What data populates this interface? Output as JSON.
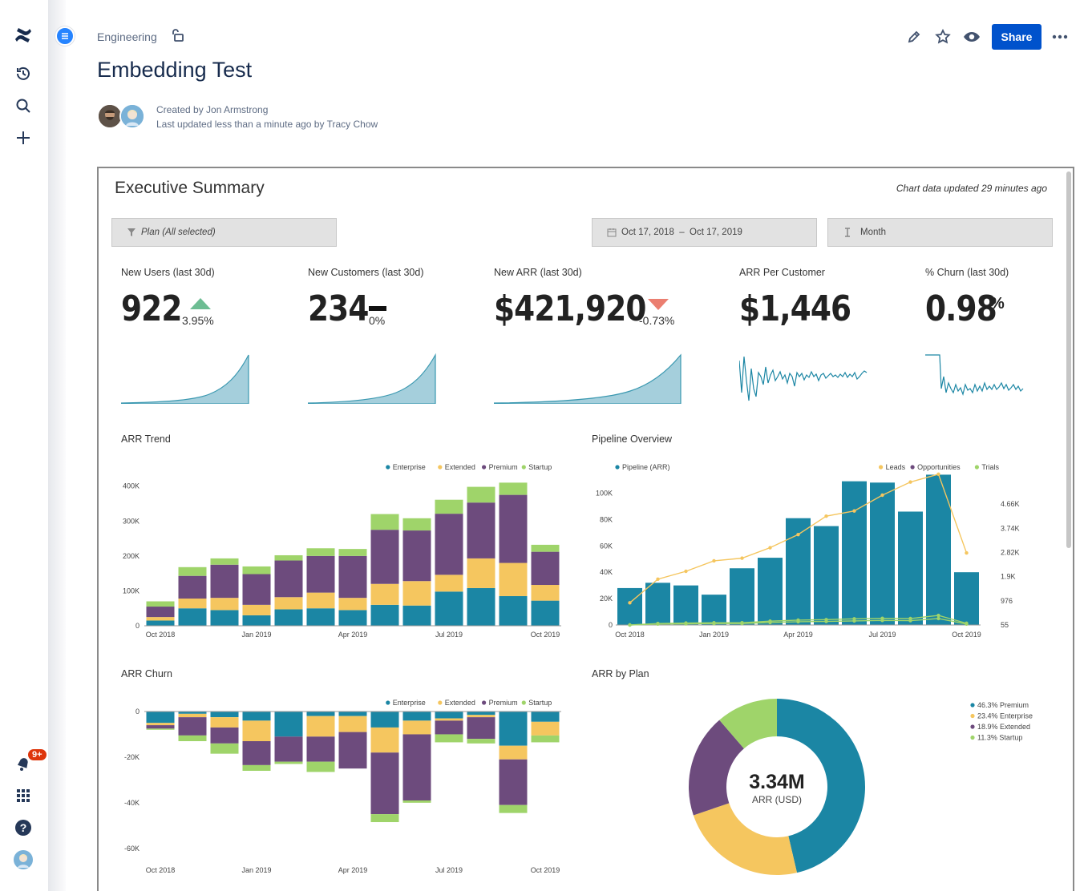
{
  "breadcrumb": "Engineering",
  "page_title": "Embedding Test",
  "byline": {
    "created": "Created by Jon Armstrong",
    "updated": "Last updated less than a minute ago by Tracy Chow"
  },
  "toolbar": {
    "share_label": "Share"
  },
  "notifications": {
    "badge": "9+"
  },
  "colors": {
    "enterprise": "#1b86a4",
    "extended": "#f5c65f",
    "premium": "#6d4b7d",
    "startup": "#9fd46a",
    "brand": "#0052cc"
  },
  "dashboard": {
    "title": "Executive Summary",
    "updated": "Chart data updated 29 minutes ago",
    "filters": {
      "plan": "Plan (All selected)",
      "date_range": "Oct 17, 2018  –  Oct 17, 2019",
      "granularity": "Month"
    },
    "kpis": [
      {
        "label": "New Users (last 30d)",
        "value": "922",
        "change": "3.95%",
        "trend": "up"
      },
      {
        "label": "New Customers (last 30d)",
        "value": "234",
        "change": "0%",
        "trend": "flat"
      },
      {
        "label": "New ARR (last 30d)",
        "value": "$421,920",
        "change": "-0.73%",
        "trend": "down"
      },
      {
        "label": "ARR Per Customer",
        "value": "$1,446"
      },
      {
        "label": "% Churn (last 30d)",
        "value": "0.98",
        "unit": "%"
      }
    ]
  },
  "chart_data": [
    {
      "type": "bar",
      "stacked": true,
      "title": "ARR Trend",
      "legend": [
        "Enterprise",
        "Extended",
        "Premium",
        "Startup"
      ],
      "categories": [
        "Oct 2018",
        "Nov 2018",
        "Dec 2018",
        "Jan 2019",
        "Feb 2019",
        "Mar 2019",
        "Apr 2019",
        "May 2019",
        "Jun 2019",
        "Jul 2019",
        "Aug 2019",
        "Sep 2019",
        "Oct 2019"
      ],
      "x_tick_labels": [
        "Oct 2018",
        "Jan 2019",
        "Apr 2019",
        "Jul 2019",
        "Oct 2019"
      ],
      "y_tick_labels": [
        "0",
        "100K",
        "200K",
        "300K",
        "400K"
      ],
      "ylim": [
        0,
        420000
      ],
      "series": [
        {
          "name": "Enterprise",
          "values": [
            15000,
            50000,
            45000,
            30000,
            47000,
            50000,
            45000,
            60000,
            58000,
            98000,
            108000,
            85000,
            72000
          ]
        },
        {
          "name": "Extended",
          "values": [
            10000,
            28000,
            35000,
            30000,
            35000,
            45000,
            35000,
            60000,
            70000,
            48000,
            85000,
            95000,
            45000
          ]
        },
        {
          "name": "Premium",
          "values": [
            30000,
            65000,
            95000,
            88000,
            105000,
            105000,
            120000,
            155000,
            145000,
            175000,
            160000,
            195000,
            95000
          ]
        },
        {
          "name": "Startup",
          "values": [
            15000,
            25000,
            18000,
            22000,
            15000,
            22000,
            20000,
            45000,
            35000,
            40000,
            45000,
            35000,
            20000
          ]
        }
      ]
    },
    {
      "type": "bar+line",
      "title": "Pipeline Overview",
      "legend": [
        "Pipeline (ARR)",
        "Leads",
        "Opportunities",
        "Trials"
      ],
      "categories": [
        "Oct 2018",
        "Nov 2018",
        "Dec 2018",
        "Jan 2019",
        "Feb 2019",
        "Mar 2019",
        "Apr 2019",
        "May 2019",
        "Jun 2019",
        "Jul 2019",
        "Aug 2019",
        "Sep 2019",
        "Oct 2019"
      ],
      "x_tick_labels": [
        "Oct 2018",
        "Jan 2019",
        "Apr 2019",
        "Jul 2019",
        "Oct 2019"
      ],
      "y_tick_labels": [
        "0",
        "20K",
        "40K",
        "60K",
        "80K",
        "100K"
      ],
      "y2_tick_labels": [
        "55",
        "976",
        "1.9K",
        "2.82K",
        "3.74K",
        "4.66K"
      ],
      "ylim": [
        0,
        110000
      ],
      "y2lim": [
        55,
        5580
      ],
      "bars": {
        "name": "Pipeline (ARR)",
        "values": [
          28000,
          32000,
          30000,
          23000,
          43000,
          51000,
          81000,
          75000,
          109000,
          108000,
          86000,
          114000,
          40000
        ]
      },
      "lines": [
        {
          "name": "Leads",
          "values": [
            900,
            1800,
            2100,
            2500,
            2600,
            3000,
            3500,
            4200,
            4400,
            5000,
            5500,
            5800,
            2800
          ]
        },
        {
          "name": "Opportunities",
          "values": [
            55,
            110,
            130,
            140,
            140,
            200,
            240,
            260,
            290,
            310,
            300,
            420,
            120
          ]
        },
        {
          "name": "Trials",
          "values": [
            55,
            90,
            100,
            110,
            110,
            150,
            180,
            190,
            210,
            230,
            220,
            300,
            90
          ]
        }
      ]
    },
    {
      "type": "bar",
      "stacked": true,
      "title": "ARR Churn",
      "legend": [
        "Enterprise",
        "Extended",
        "Premium",
        "Startup"
      ],
      "categories": [
        "Oct 2018",
        "Nov 2018",
        "Dec 2018",
        "Jan 2019",
        "Feb 2019",
        "Mar 2019",
        "Apr 2019",
        "May 2019",
        "Jun 2019",
        "Jul 2019",
        "Aug 2019",
        "Sep 2019",
        "Oct 2019"
      ],
      "x_tick_labels": [
        "Oct 2018",
        "Jan 2019",
        "Apr 2019",
        "Jul 2019",
        "Oct 2019"
      ],
      "y_tick_labels": [
        "0",
        "-20K",
        "-40K",
        "-60K"
      ],
      "ylim": [
        -65000,
        0
      ],
      "series": [
        {
          "name": "Enterprise",
          "values": [
            -5000,
            -1000,
            -2500,
            -4000,
            -11000,
            -2000,
            -2000,
            -7000,
            -4000,
            -3000,
            -1500,
            -15000,
            -4500
          ]
        },
        {
          "name": "Extended",
          "values": [
            -1000,
            -1500,
            -4500,
            -9000,
            0,
            -9000,
            -7000,
            -11000,
            -6000,
            -1000,
            -1000,
            -6000,
            -6000
          ]
        },
        {
          "name": "Premium",
          "values": [
            -1500,
            -8000,
            -7000,
            -10500,
            -11000,
            -11000,
            -16000,
            -27000,
            -29000,
            -6000,
            -9500,
            -20000,
            0
          ]
        },
        {
          "name": "Startup",
          "values": [
            -500,
            -2500,
            -4500,
            -2500,
            -1000,
            -4500,
            0,
            -3500,
            -1000,
            -3500,
            -2000,
            -3500,
            -3000
          ]
        }
      ]
    },
    {
      "type": "pie",
      "donut": true,
      "title": "ARR by Plan",
      "center_value": "3.34M",
      "center_label": "ARR (USD)",
      "slices": [
        {
          "name": "Premium",
          "label": "46.3% Premium",
          "value": 46.3
        },
        {
          "name": "Enterprise",
          "label": "23.4% Enterprise",
          "value": 23.4
        },
        {
          "name": "Extended",
          "label": "18.9% Extended",
          "value": 18.9
        },
        {
          "name": "Startup",
          "label": "11.3% Startup",
          "value": 11.3
        }
      ]
    }
  ]
}
